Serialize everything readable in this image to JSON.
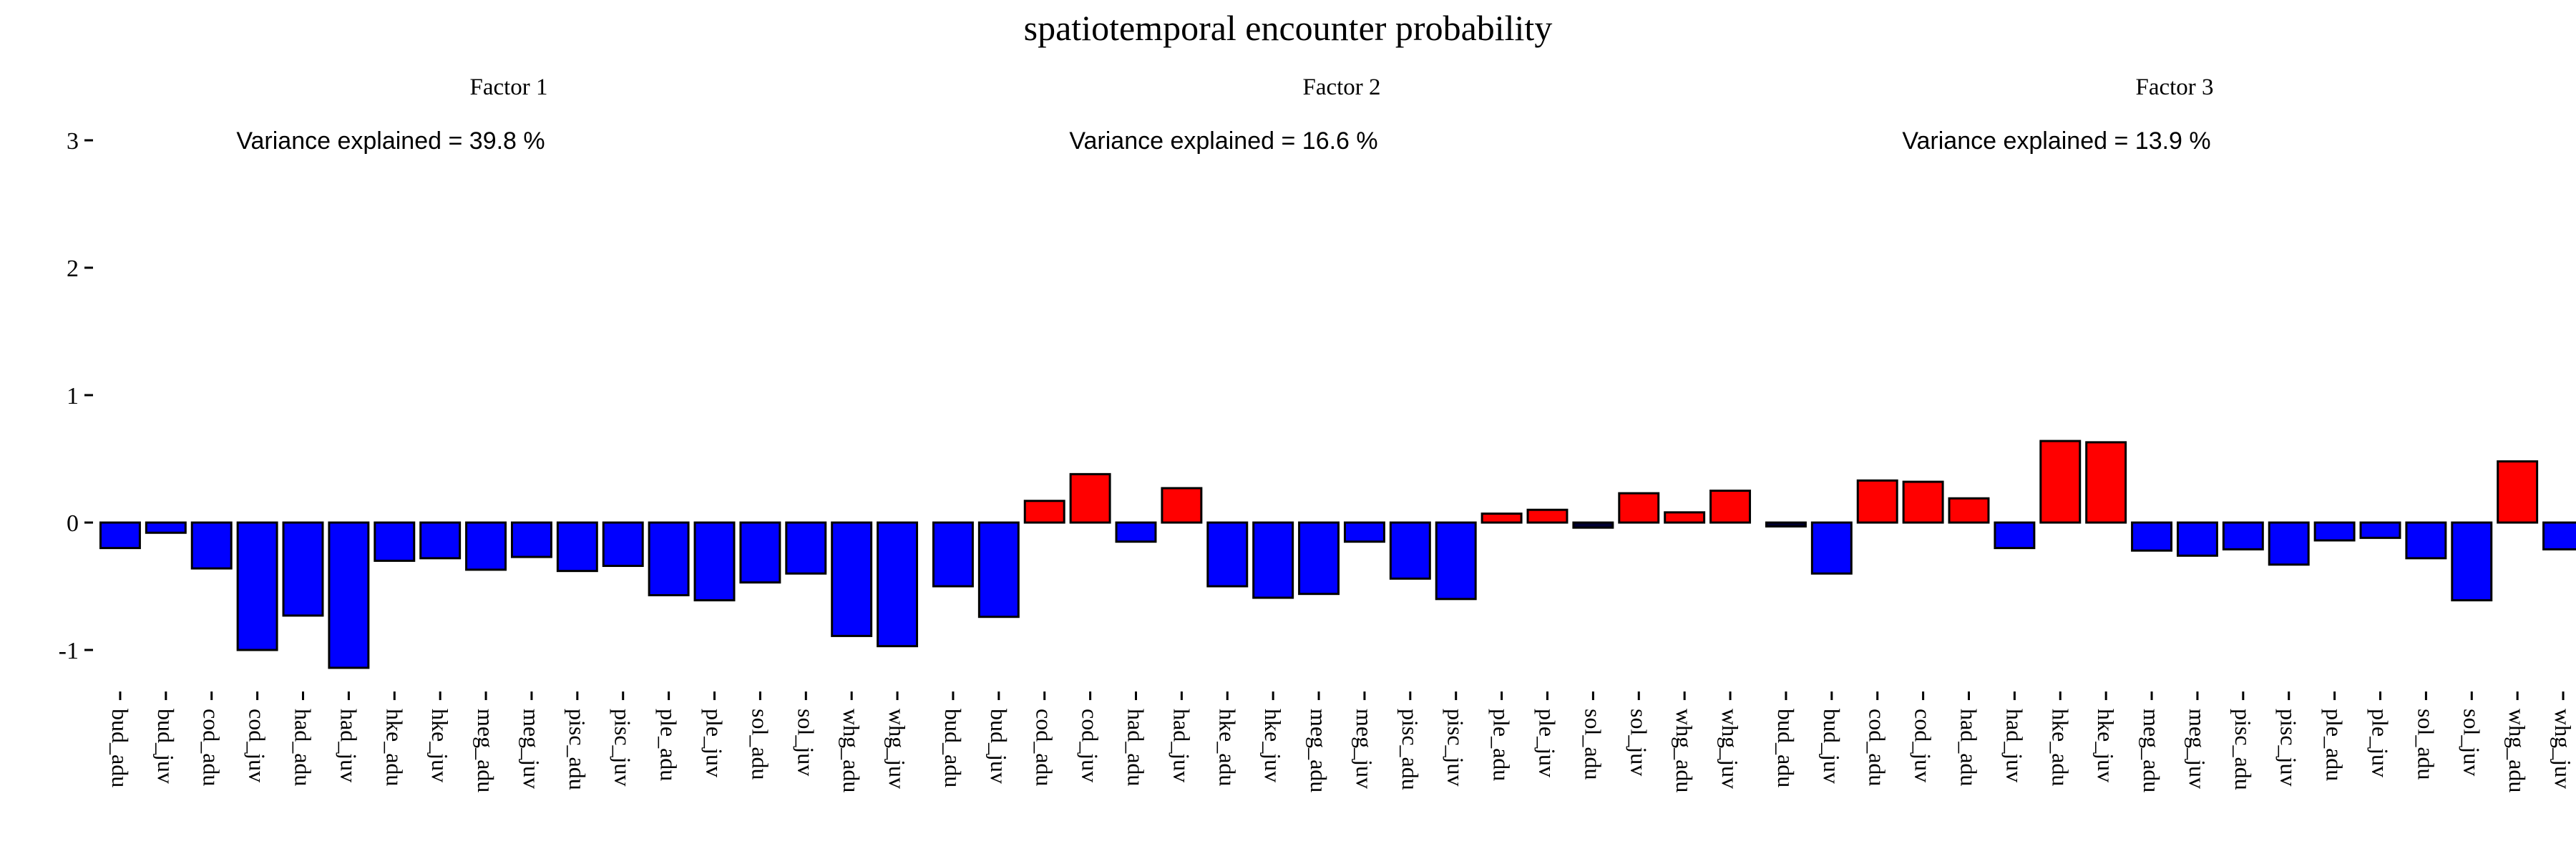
{
  "chart_data": {
    "type": "bar",
    "title": "spatiotemporal encounter probability",
    "ylim": [
      -1.3,
      3.15
    ],
    "yticks": [
      -1,
      0,
      1,
      2,
      3
    ],
    "ytick_labels": [
      "-1",
      "0",
      "1",
      "2",
      "3"
    ],
    "grid": false,
    "colors": {
      "positive": "#ff0000",
      "negative": "#0000ff",
      "near_zero": "#000033",
      "outline": "#000000"
    },
    "categories": [
      "bud_adu",
      "bud_juv",
      "cod_adu",
      "cod_juv",
      "had_adu",
      "had_juv",
      "hke_adu",
      "hke_juv",
      "meg_adu",
      "meg_juv",
      "pisc_adu",
      "pisc_juv",
      "ple_adu",
      "ple_juv",
      "sol_adu",
      "sol_juv",
      "whg_adu",
      "whg_juv"
    ],
    "panels": [
      {
        "subtitle": "Factor 1",
        "annotation": "Variance explained =  39.8 %",
        "values": [
          -0.2,
          -0.08,
          -0.36,
          -1.0,
          -0.73,
          -1.14,
          -0.3,
          -0.28,
          -0.37,
          -0.27,
          -0.38,
          -0.34,
          -0.57,
          -0.61,
          -0.47,
          -0.4,
          -0.89,
          -0.97
        ]
      },
      {
        "subtitle": "Factor 2",
        "annotation": "Variance explained =  16.6 %",
        "values": [
          -0.5,
          -0.74,
          0.17,
          0.38,
          -0.15,
          0.27,
          -0.5,
          -0.59,
          -0.56,
          -0.15,
          -0.44,
          -0.6,
          0.07,
          0.1,
          -0.04,
          0.23,
          0.08,
          0.25
        ]
      },
      {
        "subtitle": "Factor 3",
        "annotation": "Variance explained =  13.9 %",
        "values": [
          -0.03,
          -0.4,
          0.33,
          0.32,
          0.19,
          -0.2,
          0.64,
          0.63,
          -0.22,
          -0.26,
          -0.21,
          -0.33,
          -0.14,
          -0.12,
          -0.28,
          -0.61,
          0.48,
          -0.21
        ]
      }
    ]
  }
}
